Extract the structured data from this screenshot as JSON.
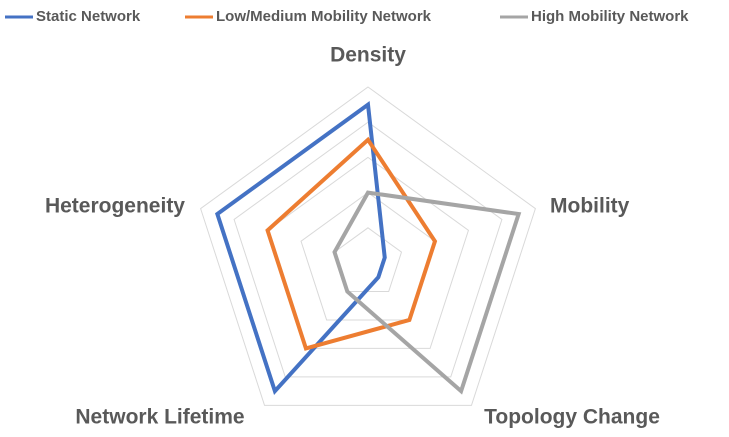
{
  "chart_data": {
    "type": "radar",
    "categories": [
      "Density",
      "Mobility",
      "Topology Change",
      "Network Lifetime",
      "Heterogeneity"
    ],
    "series": [
      {
        "name": "Static Network",
        "color": "#4472c4",
        "values": [
          4.5,
          0.5,
          0.5,
          4.5,
          4.5
        ]
      },
      {
        "name": "Low/Medium Mobility Network",
        "color": "#ed7d31",
        "values": [
          3.5,
          2,
          2,
          3,
          3
        ]
      },
      {
        "name": "High Mobility Network",
        "color": "#a5a5a5",
        "values": [
          2,
          4.5,
          4.5,
          1,
          1
        ]
      }
    ],
    "rlim": [
      0,
      5
    ],
    "rticks": [
      1,
      2,
      3,
      4,
      5
    ],
    "grid": true,
    "legend": "top"
  }
}
